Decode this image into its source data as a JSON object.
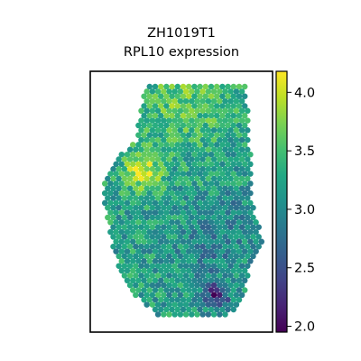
{
  "chart_data": {
    "type": "heatmap",
    "subtype": "spatial-hex-scatter",
    "title": {
      "line1": "ZH1019T1",
      "line2": "RPL10 expression"
    },
    "colormap": "viridis",
    "colorbar": {
      "min": 1.95,
      "max": 4.18,
      "ticks": [
        {
          "value": 2.0,
          "label": "2.0"
        },
        {
          "value": 2.5,
          "label": "2.5"
        },
        {
          "value": 3.0,
          "label": "3.0"
        },
        {
          "value": 3.5,
          "label": "3.5"
        },
        {
          "value": 4.0,
          "label": "4.0"
        }
      ]
    },
    "typical_value": 3.2,
    "value_range_observed": [
      1.95,
      4.15
    ],
    "high_value_regions": [
      {
        "area": "upper-left lobe",
        "approx_value": 4.0
      },
      {
        "area": "top edge",
        "approx_value": 3.9
      }
    ],
    "low_value_regions": [
      {
        "area": "lower-right",
        "approx_value": 2.1
      },
      {
        "area": "central-right band",
        "approx_value": 2.7
      }
    ],
    "axes_visible": false,
    "grid": false,
    "legend": "colorbar-right"
  }
}
